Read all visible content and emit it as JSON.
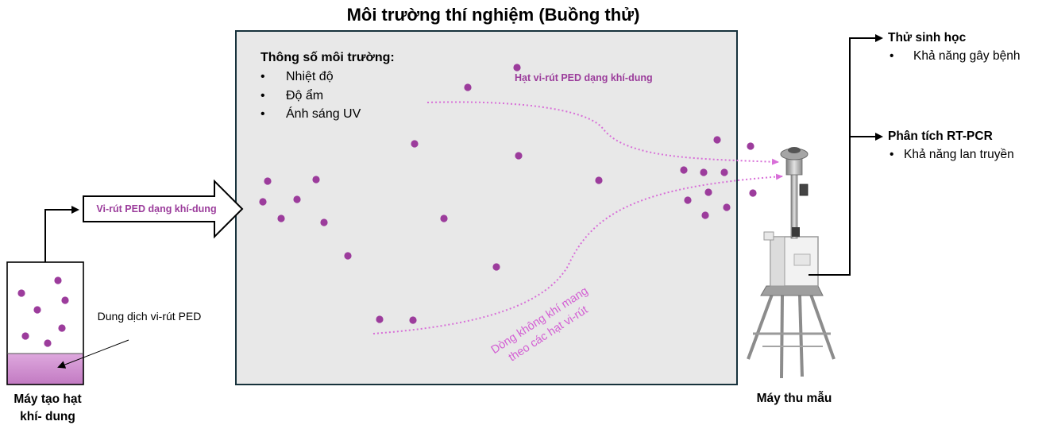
{
  "title": "Môi trường thí nghiệm (Buồng thử)",
  "chamber": {
    "heading": "Thông số môi trường:",
    "params": [
      "Nhiệt độ",
      "Độ ẩm",
      "Ánh sáng UV"
    ],
    "aerosol_label": "Hạt vi-rút PED dạng khí-dung",
    "airflow_label": "Dòng không khí mang theo các hạt vi-rút"
  },
  "generator": {
    "arrow_label": "Vi-rút PED dạng khí-dung",
    "solution_label": "Dung dịch vi-rút PED",
    "label": "Máy tạo hạt khí- dung"
  },
  "sampler": {
    "label": "Máy thu mẫu"
  },
  "outputs": [
    {
      "heading": "Thử sinh học",
      "item": "Khả năng gây bệnh"
    },
    {
      "heading": "Phân tích RT-PCR",
      "item": "Khả năng lan truyền"
    }
  ],
  "colors": {
    "particle": "#9c3c9c",
    "airflow": "#d86fd8",
    "chamber_fill": "#e8e8e8",
    "chamber_border": "#17323c",
    "liquid": "#cf8fcf"
  }
}
